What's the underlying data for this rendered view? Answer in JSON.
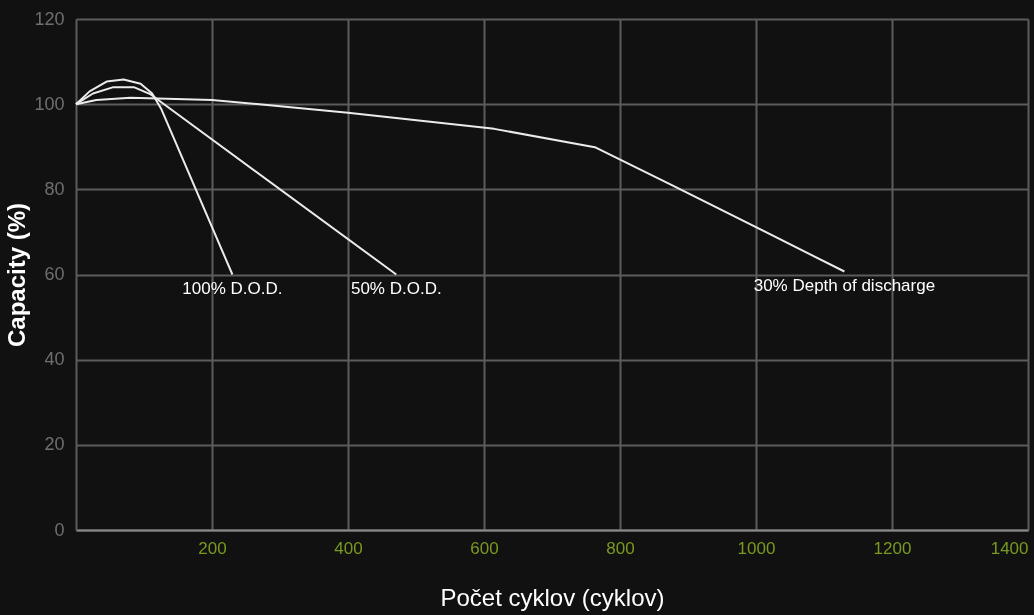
{
  "chart_data": {
    "type": "line",
    "xlabel": "Počet cyklov (cyklov)",
    "ylabel": "Capacity (%)",
    "xlim": [
      0,
      1400
    ],
    "ylim": [
      0,
      120
    ],
    "xticks": [
      200,
      400,
      600,
      800,
      1000,
      1200,
      1400
    ],
    "yticks": [
      0,
      20,
      40,
      60,
      80,
      100,
      120
    ],
    "grid": true,
    "legend": false,
    "marker": "none",
    "line_style": "solid",
    "series": [
      {
        "name": "100% D.O.D.",
        "color": "#ebebeb",
        "x": [
          0,
          20,
          45,
          70,
          95,
          112,
          125,
          230
        ],
        "values": [
          100,
          103,
          105.3,
          105.8,
          104.8,
          102.5,
          99,
          60
        ]
      },
      {
        "name": "50% D.O.D.",
        "color": "#ebebeb",
        "x": [
          0,
          25,
          55,
          85,
          110,
          125,
          471
        ],
        "values": [
          100,
          102.5,
          104,
          104,
          102.3,
          100.5,
          60
        ]
      },
      {
        "name": "30% Depth of discharge",
        "color": "#ebebeb",
        "x": [
          0,
          30,
          80,
          200,
          400,
          615,
          763,
          880,
          1130
        ],
        "values": [
          100,
          101,
          101.5,
          101,
          98,
          94.2,
          89.9,
          80.7,
          60.7
        ]
      }
    ]
  }
}
